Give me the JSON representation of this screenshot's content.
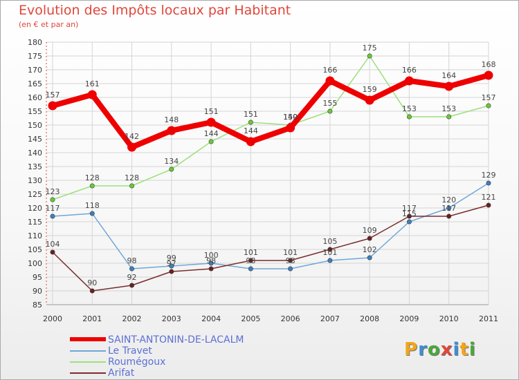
{
  "title": "Evolution des Impôts locaux par Habitant",
  "subtitle": "(en € et par an)",
  "logo": {
    "text": "Proxiti",
    "colors": [
      "#f2a51a",
      "#3b8fd6",
      "#4aa83a",
      "#e0463a",
      "#3b8fd6",
      "#f2a51a",
      "#4aa83a"
    ]
  },
  "chart_data": {
    "type": "line",
    "title": "Evolution des Impôts locaux par Habitant",
    "subtitle": "(en € et par an)",
    "xlabel": "",
    "ylabel": "",
    "x": [
      "2000",
      "2001",
      "2002",
      "2003",
      "2004",
      "2005",
      "2006",
      "2007",
      "2008",
      "2009",
      "2010",
      "2011"
    ],
    "ylim": [
      85,
      180
    ],
    "yticks": [
      85,
      90,
      95,
      100,
      105,
      110,
      115,
      120,
      125,
      130,
      135,
      140,
      145,
      150,
      155,
      160,
      165,
      170,
      175,
      180
    ],
    "legend_position": "bottom-left",
    "series": [
      {
        "name": "SAINT-ANTONIN-DE-LACALM",
        "color": "#ee0000",
        "marker": "#ee0000",
        "weight": "thick",
        "values": [
          157,
          161,
          142,
          148,
          151,
          144,
          149,
          166,
          159,
          166,
          164,
          168
        ],
        "labels": [
          "157",
          "161",
          "142",
          "148",
          "151",
          "144",
          "149",
          "166",
          "159",
          "166",
          "164",
          "168"
        ]
      },
      {
        "name": "Le Travet",
        "color": "#6fa6d6",
        "marker": "#3b7fc0",
        "weight": "thin",
        "values": [
          117,
          118,
          98,
          99,
          100,
          98,
          98,
          101,
          102,
          115,
          120,
          129
        ],
        "labels": [
          "117",
          "118",
          "98",
          "99",
          "100",
          "98",
          "98",
          "101",
          "102",
          "115",
          "120",
          "129"
        ]
      },
      {
        "name": "Roumégoux",
        "color": "#9be07a",
        "marker": "#66cc33",
        "weight": "thin",
        "values": [
          123,
          128,
          128,
          134,
          144,
          151,
          150,
          155,
          175,
          153,
          153,
          157
        ],
        "labels": [
          "123",
          "128",
          "128",
          "134",
          "144",
          "151",
          "150",
          "155",
          "175",
          "153",
          "153",
          "157"
        ]
      },
      {
        "name": "Arifat",
        "color": "#7a2b2b",
        "marker": "#6b1f1f",
        "weight": "thin",
        "values": [
          104,
          90,
          92,
          97,
          98,
          101,
          101,
          105,
          109,
          117,
          117,
          121
        ],
        "labels": [
          "104",
          "90",
          "92",
          "97",
          "98",
          "101",
          "101",
          "105",
          "109",
          "117",
          "117",
          "121"
        ]
      }
    ]
  }
}
